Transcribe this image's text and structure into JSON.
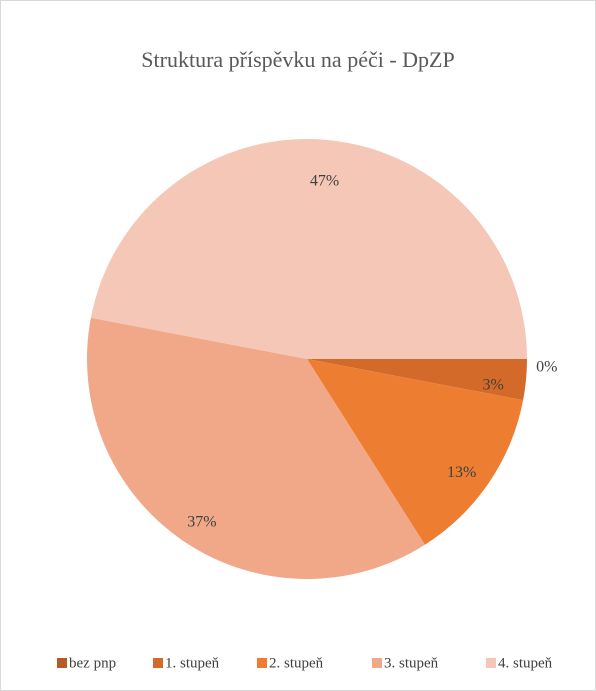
{
  "chart_data": {
    "type": "pie",
    "title": "Struktura příspěvku na péči - DpZP",
    "categories": [
      "bez pnp",
      "1. stupeň",
      "2. stupeň",
      "3. stupeň",
      "4. stupeň"
    ],
    "values": [
      0,
      3,
      13,
      37,
      47
    ],
    "value_labels": [
      "0%",
      "3%",
      "13%",
      "37%",
      "47%"
    ],
    "colors": [
      "#b85a24",
      "#d46a2a",
      "#ed7d31",
      "#f1a888",
      "#f4c7b7"
    ],
    "legend": "bottom"
  }
}
